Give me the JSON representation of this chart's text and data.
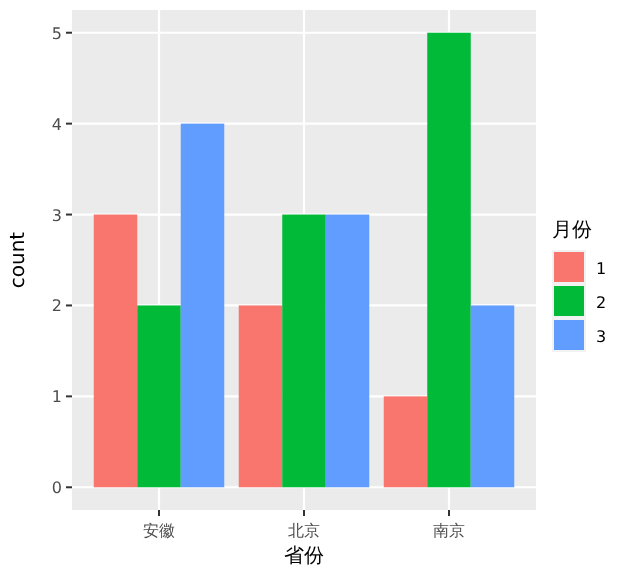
{
  "chart_data": {
    "type": "bar",
    "categories": [
      "安徽",
      "北京",
      "南京"
    ],
    "series": [
      {
        "name": "1",
        "color": "#f8766d",
        "values": [
          3,
          2,
          1
        ]
      },
      {
        "name": "2",
        "color": "#00ba38",
        "values": [
          2,
          3,
          5
        ]
      },
      {
        "name": "3",
        "color": "#619cff",
        "values": [
          4,
          3,
          2
        ]
      }
    ],
    "xlabel": "省份",
    "ylabel": "count",
    "legend_title": "月份",
    "ylim": [
      -0.25,
      5.25
    ],
    "yticks": [
      0,
      1,
      2,
      3,
      4,
      5
    ],
    "grid": true,
    "legend": "right"
  }
}
